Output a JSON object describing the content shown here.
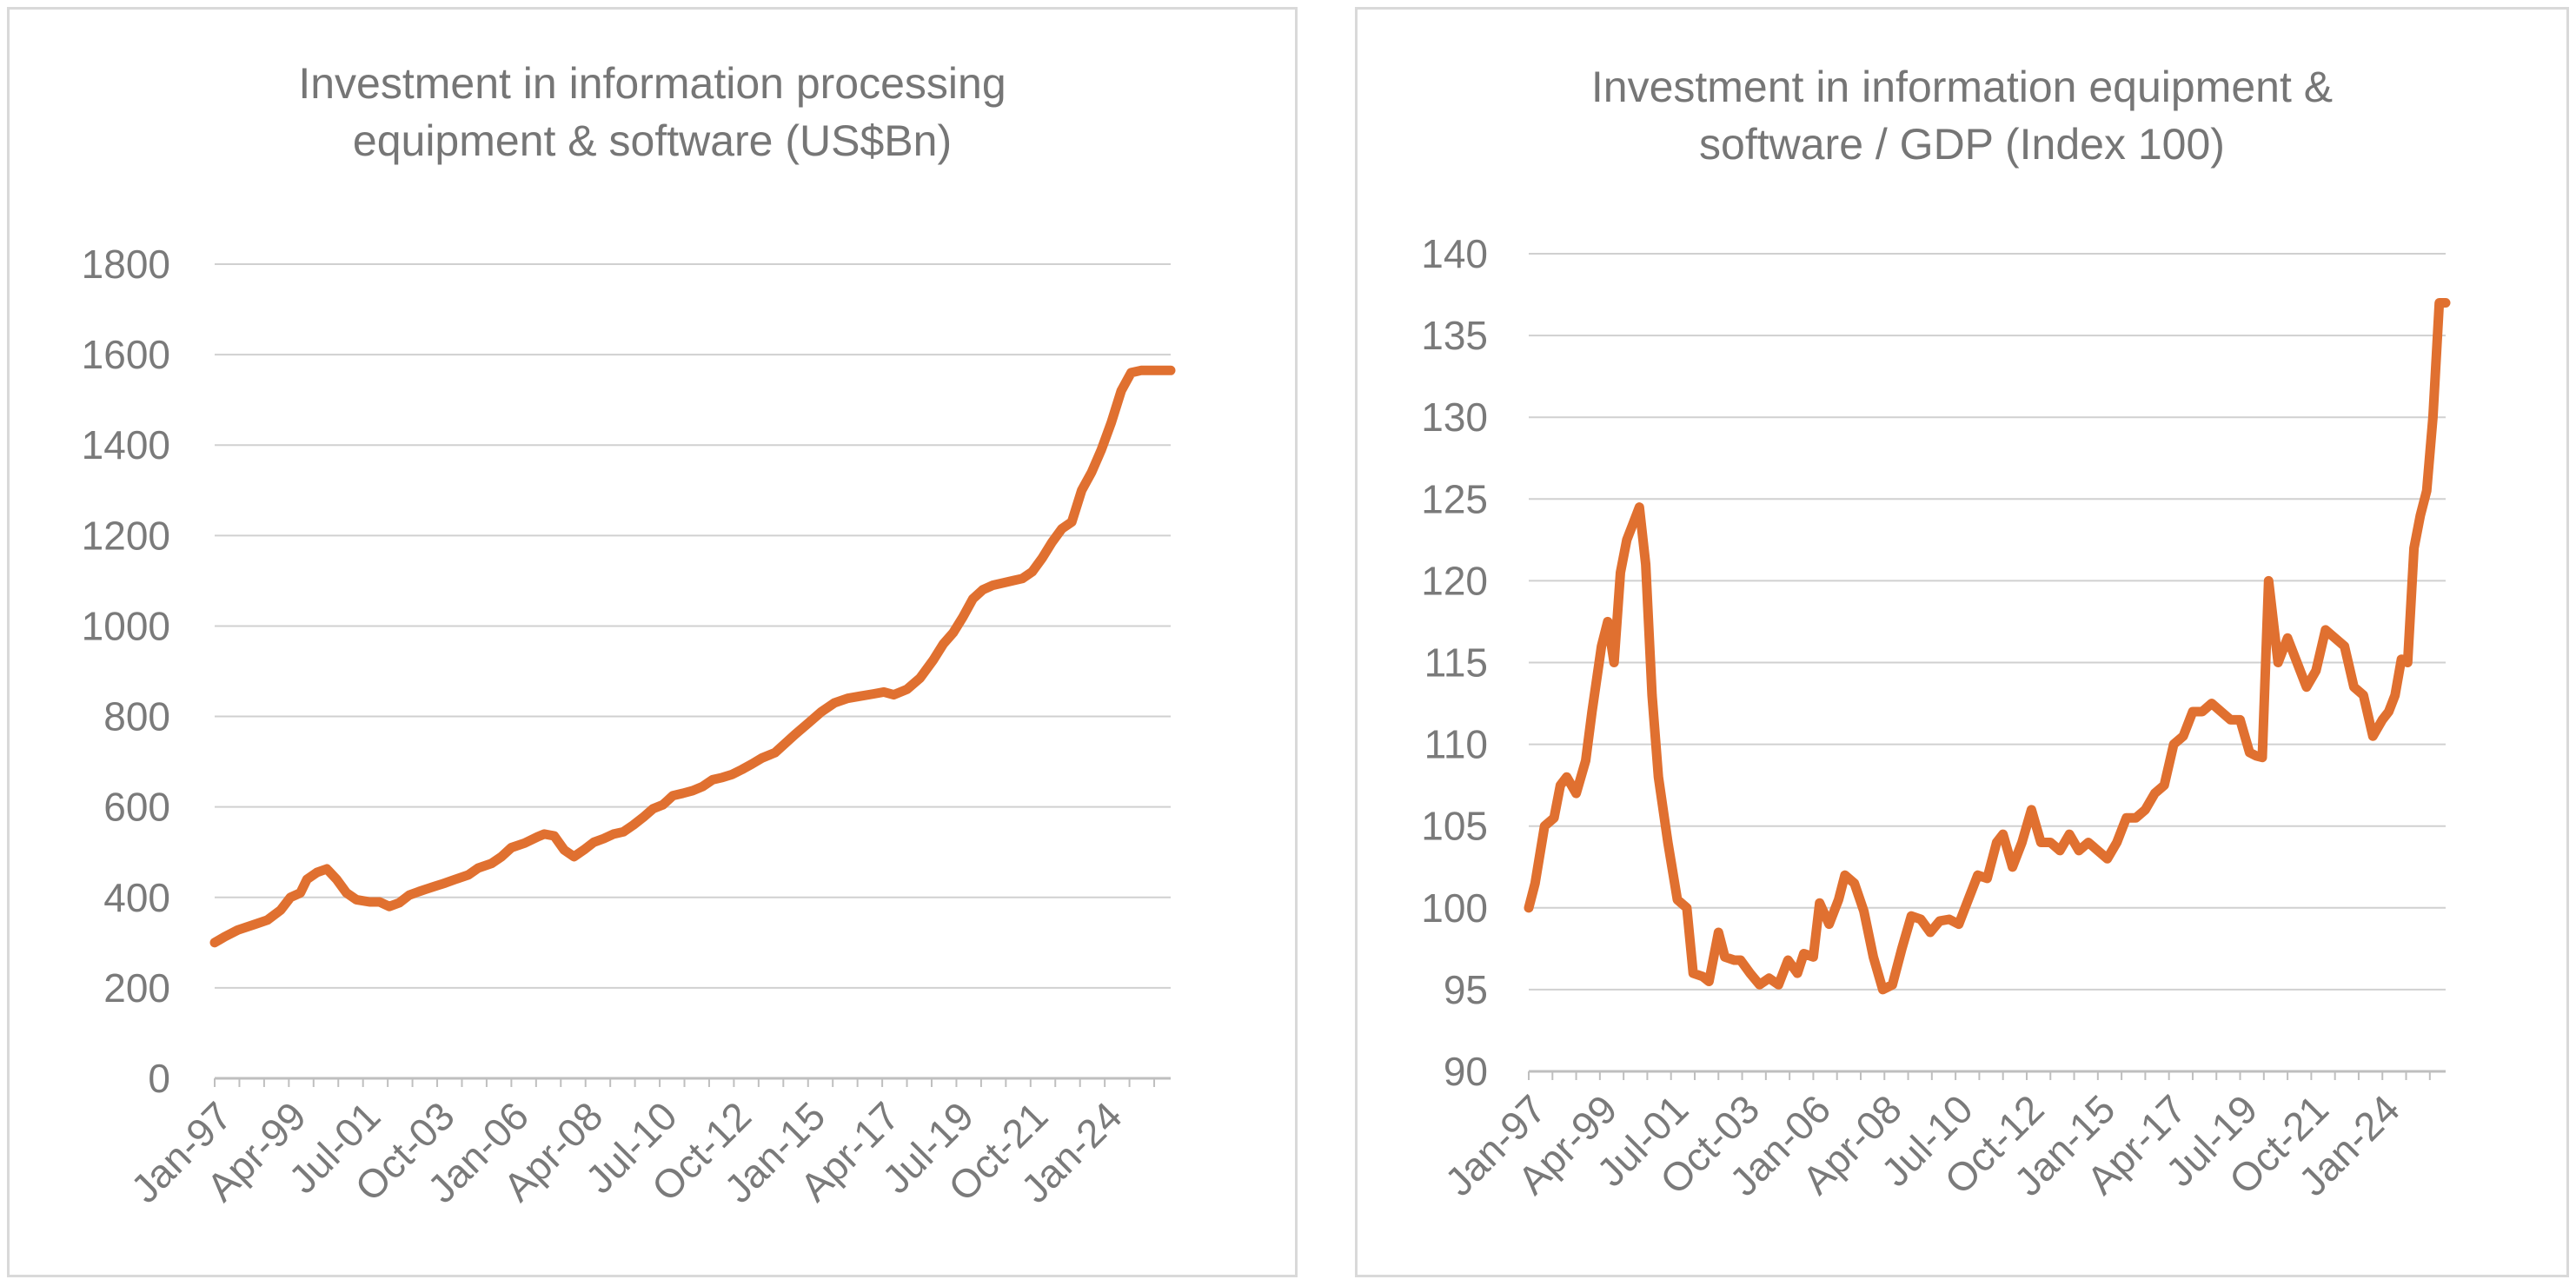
{
  "colors": {
    "line": "#e07030",
    "grid": "#d0d0d0",
    "text": "#767676"
  },
  "chart_data": [
    {
      "type": "line",
      "title_lines": [
        "Investment in information processing",
        "equipment & software (US$Bn)"
      ],
      "ylim": [
        0,
        1800
      ],
      "yticks": [
        0,
        200,
        400,
        600,
        800,
        1000,
        1200,
        1400,
        1600,
        1800
      ],
      "grid": true,
      "legend": "none",
      "x_start": 1997.0,
      "x_end": 2026.0,
      "xtick_labels": [
        "Jan-97",
        "Apr-99",
        "Jul-01",
        "Oct-03",
        "Jan-06",
        "Apr-08",
        "Jul-10",
        "Oct-12",
        "Jan-15",
        "Apr-17",
        "Jul-19",
        "Oct-21",
        "Jan-24"
      ],
      "xtick_positions": [
        1997.0,
        1999.25,
        2001.5,
        2003.75,
        2006.0,
        2008.25,
        2010.5,
        2012.75,
        2015.0,
        2017.25,
        2019.5,
        2021.75,
        2024.0
      ],
      "series": [
        {
          "x": [
            1997.0,
            1997.3,
            1997.7,
            1998.2,
            1998.6,
            1999.0,
            1999.3,
            1999.6,
            1999.8,
            2000.1,
            2000.4,
            2000.7,
            2001.0,
            2001.3,
            2001.7,
            2002.0,
            2002.3,
            2002.6,
            2002.9,
            2003.2,
            2003.4,
            2003.7,
            2004.0,
            2004.3,
            2004.7,
            2005.0,
            2005.4,
            2005.7,
            2006.0,
            2006.4,
            2006.8,
            2007.0,
            2007.3,
            2007.6,
            2007.9,
            2008.2,
            2008.5,
            2008.8,
            2009.1,
            2009.4,
            2009.7,
            2010.0,
            2010.3,
            2010.6,
            2010.9,
            2011.2,
            2011.5,
            2011.8,
            2012.1,
            2012.4,
            2012.7,
            2013.0,
            2013.3,
            2013.6,
            2014.0,
            2014.3,
            2014.6,
            2015.0,
            2015.4,
            2015.8,
            2016.2,
            2016.6,
            2017.0,
            2017.3,
            2017.6,
            2018.0,
            2018.4,
            2018.8,
            2019.1,
            2019.4,
            2019.7,
            2020.0,
            2020.3,
            2020.6,
            2020.9,
            2021.2,
            2021.5,
            2021.8,
            2022.1,
            2022.4,
            2022.7,
            2023.0,
            2023.3,
            2023.6,
            2023.9,
            2024.2,
            2024.5,
            2024.8,
            2025.1,
            2025.4,
            2025.8,
            2026.0
          ],
          "values": [
            300,
            313,
            328,
            340,
            350,
            372,
            400,
            410,
            440,
            455,
            463,
            440,
            410,
            395,
            390,
            390,
            380,
            388,
            405,
            413,
            418,
            425,
            432,
            440,
            450,
            465,
            475,
            490,
            510,
            520,
            534,
            540,
            536,
            505,
            490,
            505,
            522,
            530,
            540,
            545,
            560,
            577,
            596,
            605,
            625,
            630,
            636,
            645,
            660,
            665,
            672,
            683,
            695,
            708,
            720,
            740,
            760,
            785,
            810,
            830,
            840,
            845,
            850,
            854,
            848,
            860,
            885,
            925,
            960,
            985,
            1020,
            1060,
            1080,
            1090,
            1095,
            1100,
            1105,
            1120,
            1150,
            1185,
            1215,
            1230,
            1300,
            1340,
            1390,
            1450,
            1520,
            1560,
            1565,
            1565,
            1565,
            1565
          ]
        }
      ]
    },
    {
      "type": "line",
      "title_lines": [
        "Investment in information equipment &",
        "software / GDP (Index 100)"
      ],
      "ylim": [
        90,
        140
      ],
      "yticks": [
        90,
        95,
        100,
        105,
        110,
        115,
        120,
        125,
        130,
        135,
        140
      ],
      "grid": true,
      "legend": "none",
      "x_start": 1997.0,
      "x_end": 2026.0,
      "xtick_labels": [
        "Jan-97",
        "Apr-99",
        "Jul-01",
        "Oct-03",
        "Jan-06",
        "Apr-08",
        "Jul-10",
        "Oct-12",
        "Jan-15",
        "Apr-17",
        "Jul-19",
        "Oct-21",
        "Jan-24"
      ],
      "xtick_positions": [
        1997.0,
        1999.25,
        2001.5,
        2003.75,
        2006.0,
        2008.25,
        2010.5,
        2012.75,
        2015.0,
        2017.25,
        2019.5,
        2021.75,
        2024.0
      ],
      "series": [
        {
          "x": [
            1997.0,
            1997.2,
            1997.5,
            1997.8,
            1998.0,
            1998.2,
            1998.5,
            1998.8,
            1999.0,
            1999.3,
            1999.5,
            1999.7,
            1999.9,
            2000.1,
            2000.3,
            2000.5,
            2000.7,
            2000.9,
            2001.1,
            2001.4,
            2001.7,
            2002.0,
            2002.2,
            2002.5,
            2002.7,
            2003.0,
            2003.2,
            2003.5,
            2003.7,
            2004.0,
            2004.3,
            2004.6,
            2004.9,
            2005.2,
            2005.5,
            2005.7,
            2006.0,
            2006.2,
            2006.5,
            2006.8,
            2007.0,
            2007.3,
            2007.6,
            2007.9,
            2008.2,
            2008.5,
            2008.8,
            2009.1,
            2009.4,
            2009.7,
            2010.0,
            2010.3,
            2010.6,
            2010.9,
            2011.2,
            2011.5,
            2011.8,
            2012.0,
            2012.3,
            2012.6,
            2012.9,
            2013.2,
            2013.5,
            2013.8,
            2014.1,
            2014.4,
            2014.7,
            2015.0,
            2015.3,
            2015.6,
            2015.9,
            2016.2,
            2016.5,
            2016.8,
            2017.1,
            2017.4,
            2017.7,
            2018.0,
            2018.3,
            2018.6,
            2018.9,
            2019.2,
            2019.5,
            2019.8,
            2020.0,
            2020.2,
            2020.4,
            2020.7,
            2021.0,
            2021.3,
            2021.6,
            2021.9,
            2022.2,
            2022.5,
            2022.8,
            2023.1,
            2023.4,
            2023.7,
            2024.0,
            2024.2,
            2024.4,
            2024.6,
            2024.8,
            2025.0,
            2025.2,
            2025.4,
            2025.6,
            2025.8,
            2026.0
          ],
          "values": [
            100,
            101.5,
            105,
            105.5,
            107.5,
            108,
            107,
            109,
            112,
            116,
            117.5,
            115,
            120.5,
            122.5,
            123.5,
            124.5,
            121,
            113,
            108,
            104,
            100.5,
            100,
            96,
            95.8,
            95.5,
            98.5,
            97,
            96.8,
            96.8,
            96,
            95.3,
            95.7,
            95.3,
            96.8,
            96,
            97.2,
            97,
            100.3,
            99,
            100.5,
            102,
            101.5,
            99.8,
            97,
            95,
            95.3,
            97.5,
            99.5,
            99.3,
            98.5,
            99.2,
            99.3,
            99,
            100.5,
            102,
            101.8,
            104,
            104.5,
            102.5,
            104,
            106,
            104,
            104,
            103.5,
            104.5,
            103.5,
            104,
            103.5,
            103,
            104,
            105.5,
            105.5,
            106,
            107,
            107.5,
            110,
            110.5,
            112,
            112,
            112.5,
            112,
            111.5,
            111.5,
            109.5,
            109.3,
            109.2,
            120,
            115,
            116.5,
            115,
            113.5,
            114.5,
            117,
            116.5,
            116,
            113.5,
            113,
            110.5,
            111.5,
            112,
            113,
            115.2,
            115,
            122,
            124,
            125.5,
            130,
            137,
            137
          ]
        }
      ]
    }
  ]
}
